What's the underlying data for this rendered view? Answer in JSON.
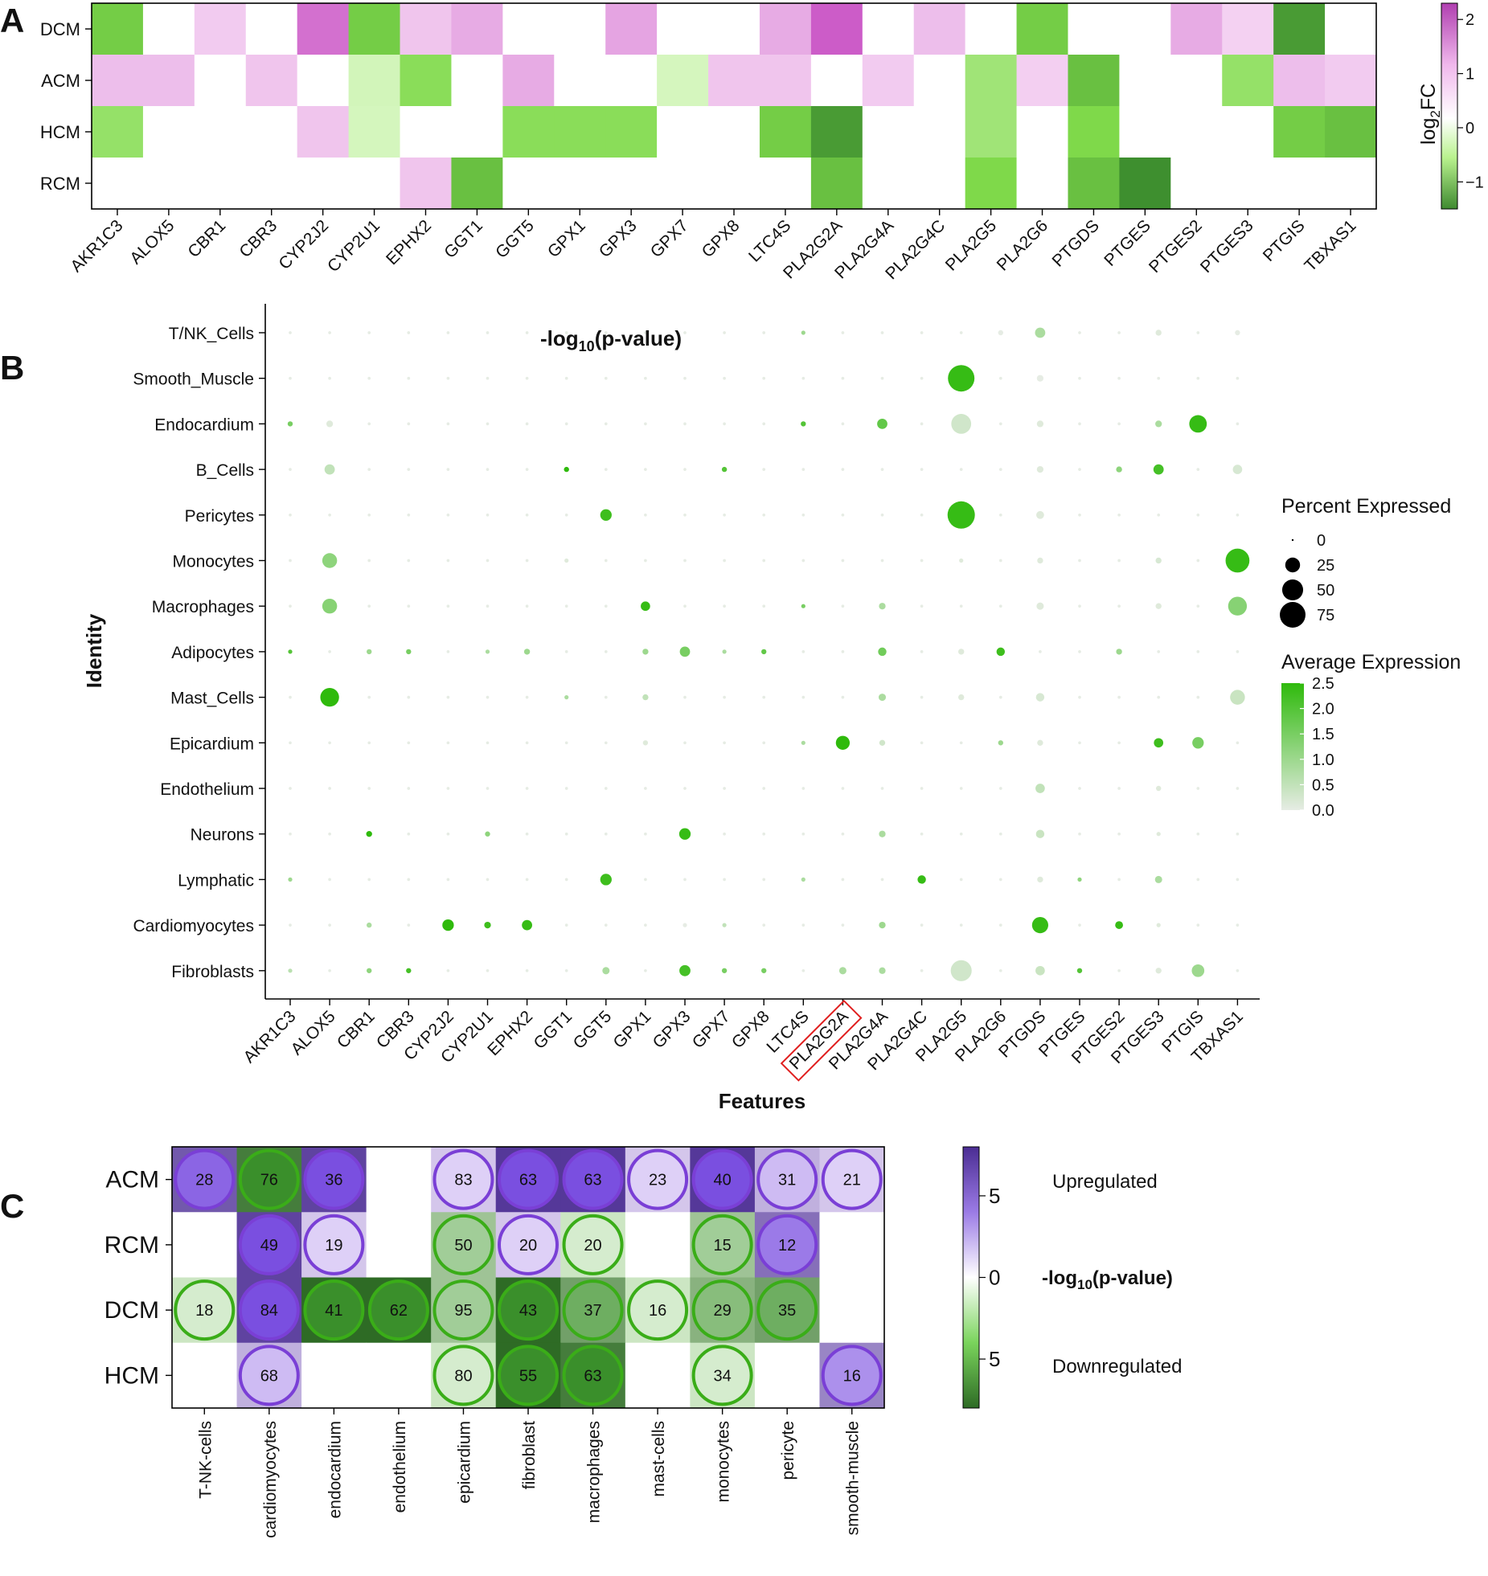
{
  "panels": {
    "a": "A",
    "b": "B",
    "c": "C"
  },
  "colors": {
    "purple_hi": "#c84fc3",
    "purple_lo": "#f4d2f2",
    "green_hi": "#3e8f2f",
    "green_mid": "#7fd94a",
    "green_lo": "#d7f7c1",
    "expr_hi": "#2fba0c",
    "expr_lo": "#e6ece4",
    "c_purple_hi": "#4b2d93",
    "c_purple_lo": "#e7dcf7",
    "c_green_hi": "#2e6b25",
    "c_green_lo": "#e3f8d9",
    "c_ring_purple": "#7a3fd6",
    "c_ring_green": "#3aad18",
    "highlight_box": "#e02020"
  },
  "chart_data": [
    {
      "type": "heatmap",
      "panel": "A",
      "rows": [
        "DCM",
        "ACM",
        "HCM",
        "RCM"
      ],
      "columns": [
        "AKR1C3",
        "ALOX5",
        "CBR1",
        "CBR3",
        "CYP2J2",
        "CYP2U1",
        "EPHX2",
        "GGT1",
        "GGT5",
        "GPX1",
        "GPX3",
        "GPX7",
        "GPX8",
        "LTC4S",
        "PLA2G2A",
        "PLA2G4A",
        "PLA2G4C",
        "PLA2G5",
        "PLA2G6",
        "PTGDS",
        "PTGES",
        "PTGES2",
        "PTGES3",
        "PTGIS",
        "TBXAS1"
      ],
      "values": [
        [
          -0.9,
          0,
          0.1,
          0,
          1.5,
          -0.9,
          0.2,
          0.6,
          0,
          0,
          0.7,
          0,
          0,
          0.6,
          1.8,
          0,
          0.3,
          0,
          -0.9,
          0,
          0,
          0.6,
          0.02,
          -1.3,
          0
        ],
        [
          0.3,
          0.3,
          0,
          0.2,
          0,
          -0.05,
          -0.7,
          0,
          0.6,
          0,
          0,
          -0.02,
          0.2,
          0.2,
          0,
          0.1,
          0,
          -0.5,
          0.05,
          -1.0,
          0,
          0,
          -0.6,
          0.3,
          0.1
        ],
        [
          -0.6,
          0,
          0,
          0,
          0.2,
          -0.03,
          0,
          0,
          -0.7,
          -0.7,
          -0.7,
          0,
          0,
          -0.9,
          -1.3,
          0,
          0,
          -0.5,
          0,
          -0.8,
          0,
          0,
          0,
          -0.9,
          -1.0
        ],
        [
          0,
          0,
          0,
          0,
          0,
          0,
          0.2,
          -1.0,
          0,
          0,
          0,
          0,
          0,
          0,
          -1.0,
          0,
          0,
          -0.8,
          0,
          -1.0,
          -1.4,
          0,
          0,
          0,
          0
        ]
      ],
      "colorbar": {
        "label_base": "log",
        "label_sub": "2",
        "label_tail": "FC",
        "ticks": [
          "2",
          "1",
          "0",
          "−1"
        ],
        "tick_values": [
          2,
          1,
          0,
          -1
        ],
        "range": [
          -1.5,
          2.3
        ]
      }
    },
    {
      "type": "scatter",
      "panel": "B",
      "annotation_main": "-log",
      "annotation_sub": "10",
      "annotation_tail": "(p-value)",
      "xlabel": "Features",
      "ylabel": "Identity",
      "features": [
        "AKR1C3",
        "ALOX5",
        "CBR1",
        "CBR3",
        "CYP2J2",
        "CYP2U1",
        "EPHX2",
        "GGT1",
        "GGT5",
        "GPX1",
        "GPX3",
        "GPX7",
        "GPX8",
        "LTC4S",
        "PLA2G2A",
        "PLA2G4A",
        "PLA2G4C",
        "PLA2G5",
        "PLA2G6",
        "PTGDS",
        "PTGES",
        "PTGES2",
        "PTGES3",
        "PTGIS",
        "TBXAS1"
      ],
      "highlighted_feature": "PLA2G2A",
      "identities": [
        "T/NK_Cells",
        "Smooth_Muscle",
        "Endocardium",
        "B_Cells",
        "Pericytes",
        "Monocytes",
        "Macrophages",
        "Adipocytes",
        "Mast_Cells",
        "Epicardium",
        "Endothelium",
        "Neurons",
        "Lymphatic",
        "Cardiomyocytes",
        "Fibroblasts"
      ],
      "percent_expressed": [
        [
          1,
          1,
          1,
          1,
          1,
          1,
          1,
          1,
          1,
          1,
          1,
          1,
          1,
          2,
          1,
          1,
          1,
          1,
          3,
          12,
          1,
          1,
          4,
          1,
          3
        ],
        [
          1,
          1,
          1,
          1,
          1,
          1,
          1,
          1,
          1,
          1,
          1,
          1,
          1,
          1,
          1,
          1,
          1,
          80,
          1,
          5,
          1,
          1,
          1,
          1,
          1
        ],
        [
          3,
          5,
          1,
          1,
          1,
          1,
          1,
          1,
          1,
          1,
          1,
          1,
          1,
          3,
          1,
          12,
          1,
          45,
          1,
          5,
          1,
          1,
          5,
          35,
          1
        ],
        [
          1,
          12,
          1,
          1,
          1,
          1,
          1,
          3,
          1,
          1,
          1,
          3,
          1,
          1,
          1,
          1,
          1,
          1,
          1,
          5,
          1,
          4,
          12,
          1,
          10
        ],
        [
          1,
          1,
          1,
          1,
          1,
          1,
          1,
          1,
          15,
          1,
          1,
          1,
          1,
          1,
          1,
          1,
          1,
          85,
          1,
          7,
          1,
          1,
          1,
          1,
          1
        ],
        [
          1,
          25,
          1,
          1,
          1,
          1,
          1,
          2,
          1,
          1,
          1,
          1,
          1,
          1,
          1,
          1,
          1,
          2,
          1,
          4,
          1,
          1,
          4,
          1,
          65
        ],
        [
          1,
          25,
          1,
          1,
          1,
          1,
          1,
          1,
          1,
          10,
          1,
          1,
          1,
          2,
          1,
          5,
          1,
          1,
          1,
          6,
          1,
          1,
          4,
          1,
          40
        ],
        [
          2,
          1,
          3,
          3,
          1,
          2,
          4,
          1,
          1,
          4,
          12,
          2,
          3,
          1,
          1,
          8,
          1,
          4,
          8,
          1,
          1,
          4,
          1,
          1,
          1
        ],
        [
          1,
          40,
          1,
          1,
          1,
          1,
          1,
          2,
          1,
          4,
          1,
          1,
          1,
          1,
          1,
          6,
          1,
          4,
          1,
          8,
          1,
          1,
          1,
          1,
          25
        ],
        [
          1,
          1,
          1,
          1,
          1,
          1,
          1,
          1,
          1,
          3,
          1,
          1,
          1,
          2,
          22,
          4,
          1,
          1,
          3,
          4,
          1,
          1,
          10,
          15,
          1
        ],
        [
          1,
          1,
          1,
          1,
          1,
          1,
          1,
          1,
          1,
          1,
          1,
          1,
          1,
          1,
          1,
          1,
          1,
          1,
          1,
          10,
          1,
          1,
          3,
          1,
          1
        ],
        [
          1,
          1,
          4,
          1,
          1,
          3,
          1,
          1,
          1,
          1,
          15,
          1,
          1,
          1,
          1,
          5,
          1,
          1,
          1,
          8,
          1,
          1,
          2,
          1,
          1
        ],
        [
          2,
          1,
          1,
          1,
          1,
          1,
          1,
          1,
          15,
          1,
          1,
          1,
          1,
          2,
          1,
          1,
          8,
          1,
          1,
          4,
          2,
          1,
          6,
          1,
          1
        ],
        [
          1,
          1,
          3,
          1,
          15,
          5,
          12,
          1,
          1,
          1,
          2,
          2,
          1,
          1,
          1,
          5,
          1,
          1,
          1,
          30,
          1,
          7,
          2,
          1,
          1
        ],
        [
          2,
          1,
          3,
          3,
          1,
          1,
          1,
          1,
          6,
          1,
          14,
          3,
          3,
          1,
          6,
          5,
          1,
          50,
          1,
          10,
          3,
          1,
          4,
          18,
          1
        ]
      ],
      "average_expression": [
        [
          0,
          0,
          0,
          0,
          0,
          0,
          0,
          0,
          0,
          0,
          0,
          0,
          0,
          1.0,
          0,
          0,
          0,
          0,
          0,
          0.8,
          0,
          0,
          0.1,
          0,
          0
        ],
        [
          0,
          0,
          0,
          0,
          0,
          0,
          0,
          0,
          0,
          0,
          0,
          0,
          0,
          0,
          0,
          0,
          0,
          2.4,
          0,
          0,
          0,
          0,
          0,
          0,
          0
        ],
        [
          1.5,
          0.1,
          0,
          0,
          0,
          0,
          0,
          0,
          0,
          0,
          0,
          0,
          0,
          2.0,
          0,
          1.8,
          0,
          0.3,
          0,
          0.1,
          0,
          0,
          0.8,
          2.4,
          0
        ],
        [
          0,
          0.5,
          0,
          0,
          0,
          0,
          0,
          2.5,
          0,
          0,
          0,
          2.0,
          0,
          0,
          0,
          0,
          0,
          0,
          0,
          0.1,
          0,
          1.2,
          2.2,
          0,
          0.2
        ],
        [
          0,
          0,
          0,
          0,
          0,
          0,
          0,
          0,
          2.3,
          0,
          0,
          0,
          0,
          0,
          0,
          0,
          0,
          2.4,
          0,
          0.1,
          0,
          0,
          0,
          0,
          0
        ],
        [
          0,
          1.2,
          0,
          0,
          0,
          0,
          0,
          0.1,
          0,
          0,
          0,
          0,
          0,
          0,
          0,
          0,
          0,
          0.1,
          0,
          0.1,
          0,
          0,
          0.2,
          0,
          2.4
        ],
        [
          0,
          1.3,
          0,
          0,
          0,
          0,
          0,
          0,
          0,
          2.4,
          0,
          0,
          0,
          1.5,
          0,
          0.8,
          0,
          0,
          0,
          0.1,
          0,
          0,
          0.1,
          0,
          1.3
        ],
        [
          2.0,
          0,
          1.0,
          1.5,
          0,
          0.8,
          1.0,
          0,
          0,
          1.0,
          1.5,
          0.8,
          1.8,
          0,
          0,
          1.6,
          0,
          0.1,
          2.3,
          0,
          0,
          1.0,
          0,
          0,
          0
        ],
        [
          0,
          2.5,
          0,
          0,
          0,
          0,
          0,
          0.8,
          0,
          0.5,
          0,
          0,
          0,
          0,
          0,
          0.8,
          0,
          0.1,
          0,
          0.2,
          0,
          0,
          0,
          0,
          0.4
        ],
        [
          0,
          0,
          0,
          0,
          0,
          0,
          0,
          0,
          0,
          0.1,
          0,
          0,
          0,
          0.8,
          2.5,
          0.3,
          0,
          0,
          1.0,
          0.1,
          0,
          0,
          2.3,
          1.5,
          0
        ],
        [
          0,
          0,
          0,
          0,
          0,
          0,
          0,
          0,
          0,
          0,
          0,
          0,
          0,
          0,
          0,
          0,
          0,
          0,
          0,
          0.5,
          0,
          0,
          0.1,
          0,
          0
        ],
        [
          0,
          0,
          2.5,
          0,
          0,
          1.2,
          0,
          0,
          0,
          0,
          2.4,
          0,
          0,
          0,
          0,
          0.8,
          0,
          0,
          0,
          0.4,
          0,
          0,
          0.1,
          0,
          0
        ],
        [
          1.0,
          0,
          0,
          0,
          0,
          0,
          0,
          0,
          2.3,
          0,
          0,
          0,
          0,
          0.8,
          0,
          0,
          2.4,
          0,
          0,
          0.1,
          1.2,
          0,
          0.8,
          0,
          0
        ],
        [
          0,
          0,
          0.8,
          0,
          2.5,
          2.3,
          2.4,
          0,
          0,
          0,
          0,
          0.5,
          0,
          0,
          0,
          1.0,
          0,
          0,
          0,
          2.4,
          0,
          2.4,
          0.1,
          0,
          0
        ],
        [
          0.6,
          0,
          1.2,
          2.2,
          0,
          0,
          0,
          0,
          0.8,
          0,
          2.2,
          1.5,
          1.5,
          0,
          0.8,
          0.8,
          0,
          0.3,
          0,
          0.4,
          2.0,
          0,
          0.1,
          1.0,
          0
        ]
      ],
      "size_legend": {
        "title": "Percent Expressed",
        "values": [
          0,
          25,
          50,
          75
        ],
        "labels": [
          "0",
          "25",
          "50",
          "75"
        ]
      },
      "color_legend": {
        "title": "Average Expression",
        "ticks": [
          "2.5",
          "2.0",
          "1.5",
          "1.0",
          "0.5",
          "0.0"
        ],
        "tick_values": [
          2.5,
          2.0,
          1.5,
          1.0,
          0.5,
          0.0
        ],
        "range": [
          0,
          2.5
        ]
      }
    },
    {
      "type": "heatmap",
      "panel": "C",
      "rows": [
        "ACM",
        "RCM",
        "DCM",
        "HCM"
      ],
      "columns": [
        "T-NK-cells",
        "cardiomyocytes",
        "endocardium",
        "endothelium",
        "epicardium",
        "fibroblast",
        "macrophages",
        "mast-cells",
        "monocytes",
        "pericyte",
        "smooth-muscle"
      ],
      "values": [
        [
          6,
          -7,
          7,
          null,
          1,
          7.5,
          7.5,
          1,
          7.5,
          2,
          1
        ],
        [
          null,
          7,
          1,
          null,
          -3,
          1,
          -1,
          null,
          -3,
          5,
          null
        ],
        [
          -1,
          7,
          -8,
          -8,
          -3,
          -8,
          -5,
          -1,
          -4,
          -5,
          null
        ],
        [
          null,
          2,
          null,
          null,
          -1,
          -8,
          -7,
          null,
          -1,
          null,
          4
        ]
      ],
      "counts": [
        [
          28,
          76,
          36,
          null,
          83,
          63,
          63,
          23,
          40,
          31,
          21
        ],
        [
          null,
          49,
          19,
          null,
          50,
          20,
          20,
          null,
          15,
          12,
          null
        ],
        [
          18,
          84,
          41,
          62,
          95,
          43,
          37,
          16,
          29,
          35,
          null
        ],
        [
          null,
          68,
          null,
          null,
          80,
          55,
          63,
          null,
          34,
          null,
          16
        ]
      ],
      "ring_direction": [
        [
          "up",
          "down",
          "up",
          null,
          "up",
          "up",
          "up",
          "up",
          "up",
          "up",
          "up"
        ],
        [
          null,
          "up",
          "up",
          null,
          "down",
          "up",
          "down",
          null,
          "down",
          "up",
          null
        ],
        [
          "down",
          "up",
          "down",
          "down",
          "down",
          "down",
          "down",
          "down",
          "down",
          "down",
          null
        ],
        [
          null,
          "up",
          null,
          null,
          "down",
          "down",
          "down",
          null,
          "down",
          null,
          "up"
        ]
      ],
      "colorbar": {
        "ticks": [
          "5",
          "0",
          "5"
        ],
        "tick_values": [
          5,
          0,
          -5
        ],
        "range": [
          -8,
          8
        ],
        "upper_label": "Upregulated",
        "lower_label": "Downregulated",
        "title_main": "-log",
        "title_sub": "10",
        "title_tail": "(p-value)"
      }
    }
  ]
}
